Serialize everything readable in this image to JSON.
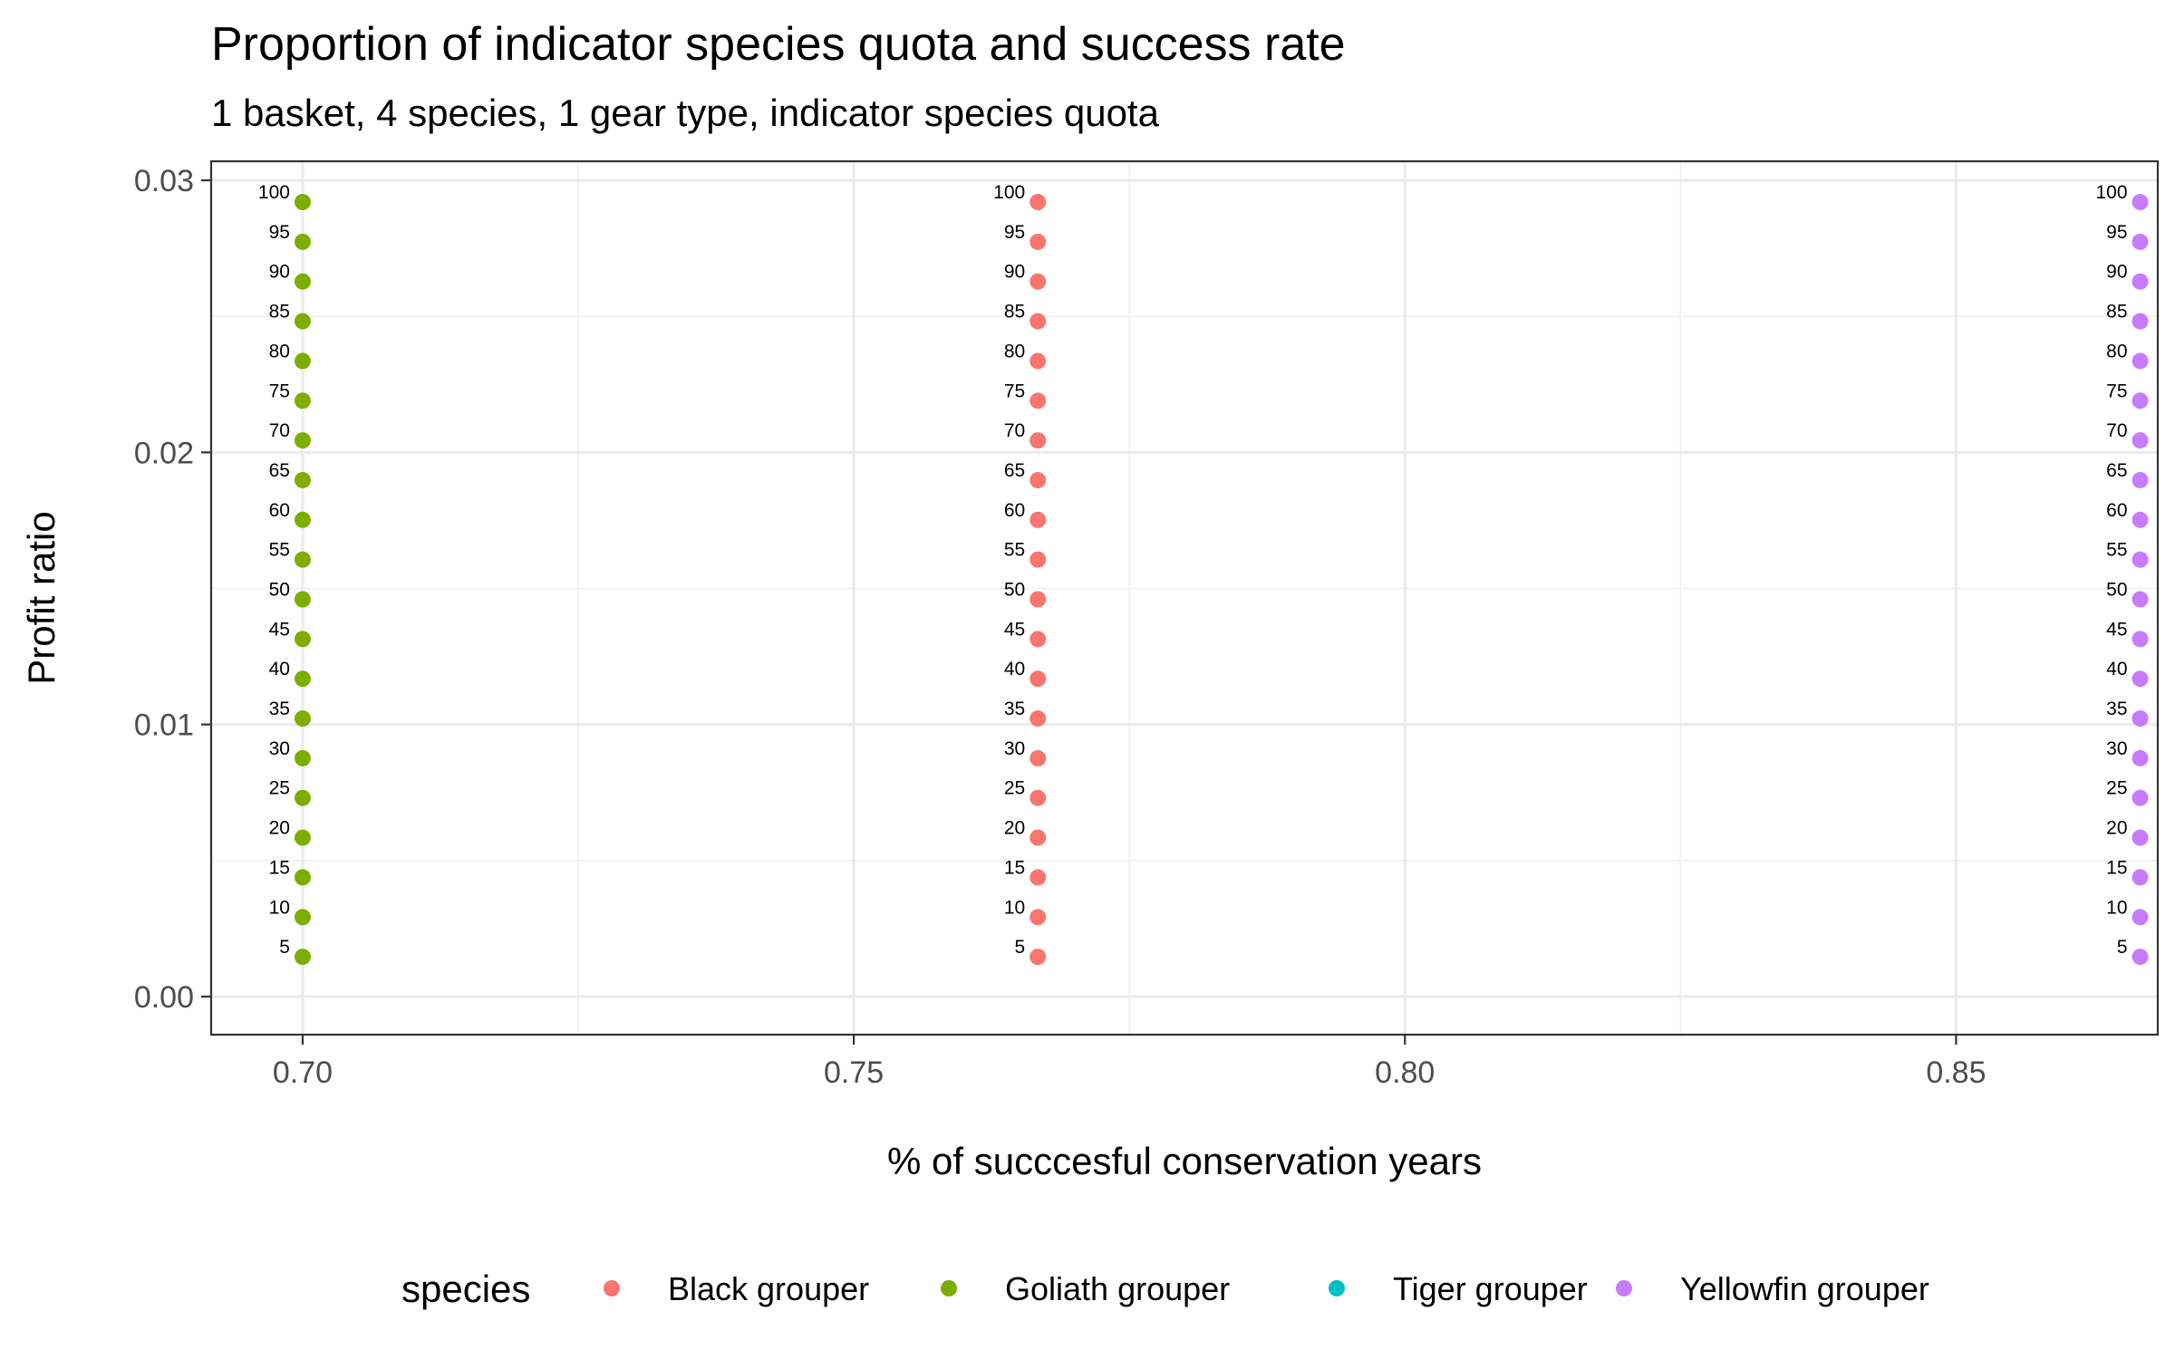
{
  "chart_data": {
    "type": "scatter",
    "title": "Proportion of indicator species quota and success rate",
    "subtitle": "1 basket, 4 species, 1 gear type, indicator species quota",
    "xlabel": "% of succcesful conservation years",
    "ylabel": "Profit ratio",
    "xlim": [
      0.6917,
      0.8683
    ],
    "ylim": [
      -0.0014,
      0.0307
    ],
    "x_ticks": [
      "0.70",
      "0.75",
      "0.80",
      "0.85"
    ],
    "x_tick_values": [
      0.7,
      0.75,
      0.8,
      0.85
    ],
    "y_ticks": [
      "0.00",
      "0.01",
      "0.02",
      "0.03"
    ],
    "y_tick_values": [
      0.0,
      0.01,
      0.02,
      0.03
    ],
    "grid": true,
    "legend_position": "bottom",
    "legend_title": "species",
    "point_labels": [
      "5",
      "10",
      "15",
      "20",
      "25",
      "30",
      "35",
      "40",
      "45",
      "50",
      "55",
      "60",
      "65",
      "70",
      "75",
      "80",
      "85",
      "90",
      "95",
      "100"
    ],
    "series": [
      {
        "name": "Black grouper",
        "color": "#F8766D",
        "x": [
          0.7667,
          0.7667,
          0.7667,
          0.7667,
          0.7667,
          0.7667,
          0.7667,
          0.7667,
          0.7667,
          0.7667,
          0.7667,
          0.7667,
          0.7667,
          0.7667,
          0.7667,
          0.7667,
          0.7667,
          0.7667,
          0.7667,
          0.7667
        ],
        "y": [
          0.00146,
          0.00292,
          0.00438,
          0.00584,
          0.0073,
          0.00876,
          0.01022,
          0.01168,
          0.01314,
          0.0146,
          0.01606,
          0.01752,
          0.01898,
          0.02044,
          0.0219,
          0.02336,
          0.02482,
          0.02628,
          0.02774,
          0.0292
        ]
      },
      {
        "name": "Goliath grouper",
        "color": "#7CAE00",
        "x": [
          0.7,
          0.7,
          0.7,
          0.7,
          0.7,
          0.7,
          0.7,
          0.7,
          0.7,
          0.7,
          0.7,
          0.7,
          0.7,
          0.7,
          0.7,
          0.7,
          0.7,
          0.7,
          0.7,
          0.7
        ],
        "y": [
          0.00146,
          0.00292,
          0.00438,
          0.00584,
          0.0073,
          0.00876,
          0.01022,
          0.01168,
          0.01314,
          0.0146,
          0.01606,
          0.01752,
          0.01898,
          0.02044,
          0.0219,
          0.02336,
          0.02482,
          0.02628,
          0.02774,
          0.0292
        ]
      },
      {
        "name": "Tiger grouper",
        "color": "#00BFC4",
        "x": [],
        "y": []
      },
      {
        "name": "Yellowfin grouper",
        "color": "#C77CFF",
        "x": [
          0.8667,
          0.8667,
          0.8667,
          0.8667,
          0.8667,
          0.8667,
          0.8667,
          0.8667,
          0.8667,
          0.8667,
          0.8667,
          0.8667,
          0.8667,
          0.8667,
          0.8667,
          0.8667,
          0.8667,
          0.8667,
          0.8667,
          0.8667
        ],
        "y": [
          0.00146,
          0.00292,
          0.00438,
          0.00584,
          0.0073,
          0.00876,
          0.01022,
          0.01168,
          0.01314,
          0.0146,
          0.01606,
          0.01752,
          0.01898,
          0.02044,
          0.0219,
          0.02336,
          0.02482,
          0.02628,
          0.02774,
          0.0292
        ]
      }
    ]
  }
}
